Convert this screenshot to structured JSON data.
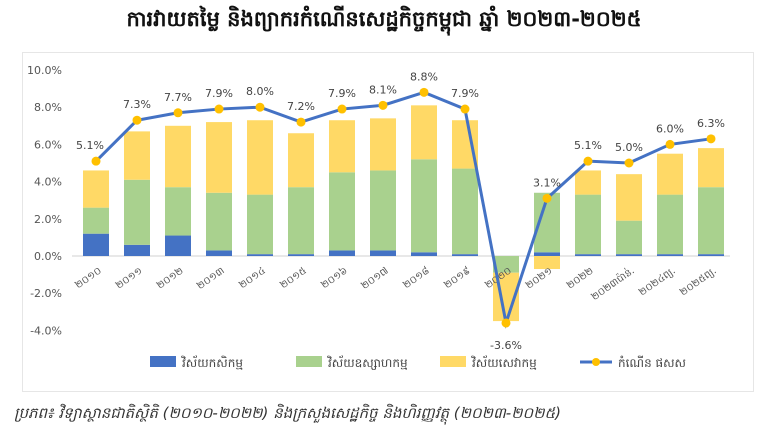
{
  "title": "ការវាយតម្លៃ និងព្យាករកំណើនសេដ្ឋកិច្ចកម្ពុជា ឆ្នាំ ២០២៣-២០២៥",
  "source": "ប្រភព៖ វិទ្យាស្ថានជាតិស្ថិតិ (២០១០-២០២២) និងក្រសួងសេដ្ឋកិច្ច និងហិរញ្ញវត្ថុ (២០២៣-២០២៥)",
  "chart_data": {
    "type": "bar",
    "stacked": true,
    "title": "ការវាយតម្លៃ និងព្យាករកំណើនសេដ្ឋកិច្ចកម្ពុជា ឆ្នាំ ២០២៣-២០២៥",
    "categories": [
      "២០១០",
      "២០១១",
      "២០១២",
      "២០១៣",
      "២០១៤",
      "២០១៥",
      "២០១៦",
      "២០១៧",
      "២០១៨",
      "២០១៩",
      "២០២០",
      "២០២១",
      "២០២២",
      "២០២៣ប៉ាន់.",
      "២០២៤ព្យ.",
      "២០២៥ព្យ."
    ],
    "ylim": [
      -4,
      10
    ],
    "yticks": [
      -4,
      -2,
      0,
      2,
      4,
      6,
      8,
      10
    ],
    "ytick_labels": [
      "-4.0%",
      "-2.0%",
      "0.0%",
      "2.0%",
      "4.0%",
      "6.0%",
      "8.0%",
      "10.0%"
    ],
    "grid": false,
    "legend_position": "bottom",
    "series": [
      {
        "name": "វិស័យកសិកម្ម",
        "kind": "bar",
        "color": "#4472c4",
        "values": [
          1.2,
          0.6,
          1.1,
          0.3,
          0.1,
          0.1,
          0.3,
          0.3,
          0.2,
          0.1,
          0.0,
          0.2,
          0.1,
          0.1,
          0.1,
          0.1
        ]
      },
      {
        "name": "វិស័យឧស្សាហកម្ម",
        "kind": "bar",
        "color": "#a9d18e",
        "values": [
          1.4,
          3.5,
          2.6,
          3.1,
          3.2,
          3.6,
          4.2,
          4.3,
          5.0,
          4.6,
          -0.9,
          3.2,
          3.2,
          1.8,
          3.2,
          3.6
        ]
      },
      {
        "name": "វិស័យសេវាកម្ម",
        "kind": "bar",
        "color": "#ffd966",
        "values": [
          2.0,
          2.6,
          3.3,
          3.8,
          4.0,
          2.9,
          2.8,
          2.8,
          2.9,
          2.6,
          -2.6,
          -0.7,
          1.3,
          2.5,
          2.2,
          2.1
        ]
      },
      {
        "name": "កំណើន ផសស",
        "kind": "line",
        "color": "#4472c4",
        "marker_color": "#ffc000",
        "values": [
          5.1,
          7.3,
          7.7,
          7.9,
          8.0,
          7.2,
          7.9,
          8.1,
          8.8,
          7.9,
          -3.6,
          3.1,
          5.1,
          5.0,
          6.0,
          6.3
        ],
        "labels": [
          "5.1%",
          "7.3%",
          "7.7%",
          "7.9%",
          "8.0%",
          "7.2%",
          "7.9%",
          "8.1%",
          "8.8%",
          "7.9%",
          "-3.6%",
          "3.1%",
          "5.1%",
          "5.0%",
          "6.0%",
          "6.3%"
        ]
      }
    ]
  }
}
